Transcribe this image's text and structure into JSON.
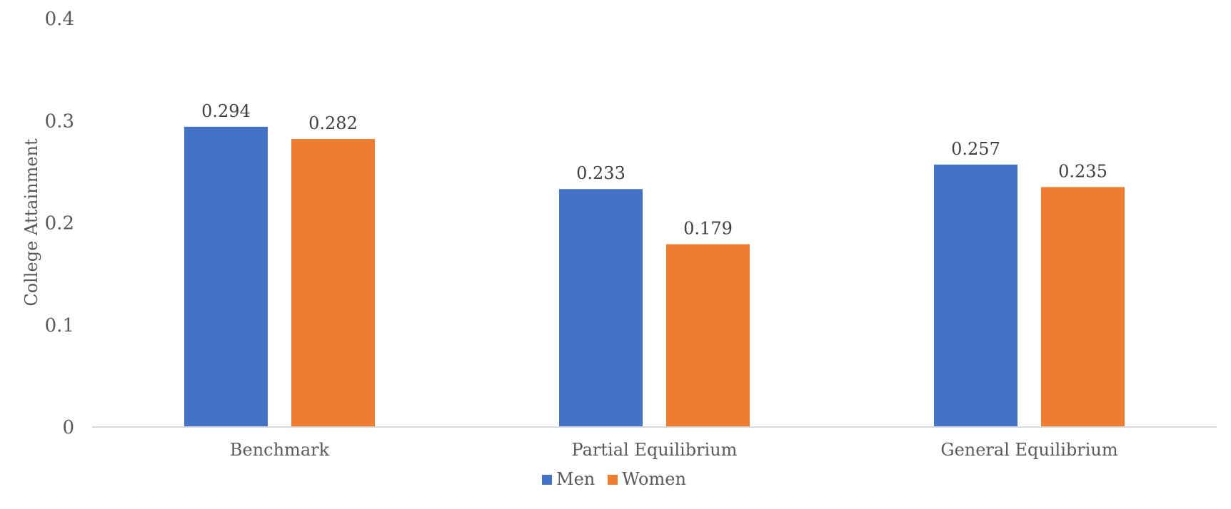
{
  "chart_data": {
    "type": "bar",
    "title": "",
    "xlabel": "",
    "ylabel": "College Attainment",
    "categories": [
      "Benchmark",
      "Partial Equilibrium",
      "General Equilibrium"
    ],
    "series": [
      {
        "name": "Men",
        "color": "#4472c4",
        "values": [
          0.294,
          0.233,
          0.257
        ],
        "labels": [
          "0.294",
          "0.233",
          "0.257"
        ]
      },
      {
        "name": "Women",
        "color": "#ed7d31",
        "values": [
          0.282,
          0.179,
          0.235
        ],
        "labels": [
          "0.282",
          "0.179",
          "0.235"
        ]
      }
    ],
    "ylim": [
      0,
      0.4
    ],
    "yticks": [
      0,
      0.1,
      0.2,
      0.3,
      0.4
    ],
    "ytick_labels": [
      "0",
      "0.1",
      "0.2",
      "0.3",
      "0.4"
    ],
    "grid": false,
    "legend": "bottom-center"
  }
}
